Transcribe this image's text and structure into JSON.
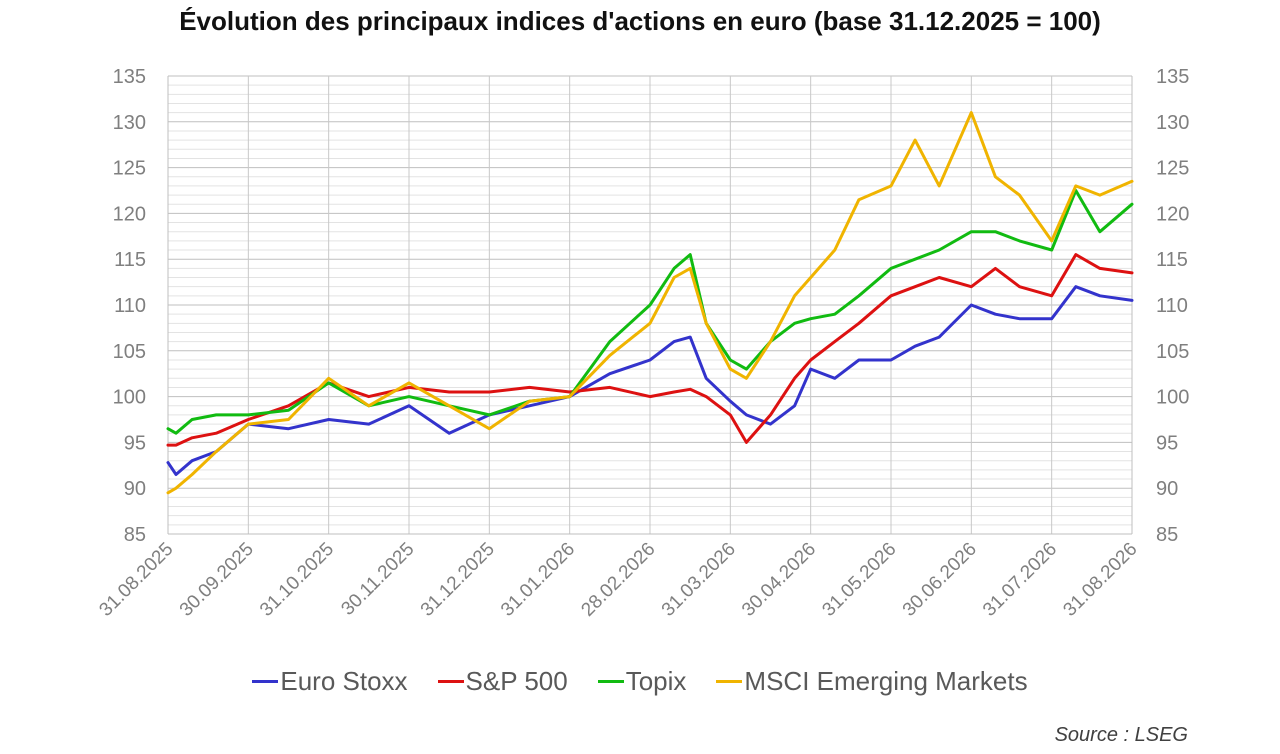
{
  "chart_data": {
    "type": "line",
    "title": "Évolution des principaux indices d'actions en euro (base 31.12.2025 = 100)",
    "source": "Source : LSEG",
    "x_tick_labels": [
      "31.08.2025",
      "30.09.2025",
      "31.10.2025",
      "30.11.2025",
      "31.12.2025",
      "31.01.2026",
      "28.02.2026",
      "31.03.2026",
      "30.04.2026",
      "31.05.2026",
      "30.06.2026",
      "31.07.2026",
      "31.08.2026"
    ],
    "ylim": [
      85,
      135
    ],
    "y_ticks": [
      85,
      90,
      95,
      100,
      105,
      110,
      115,
      120,
      125,
      130,
      135
    ],
    "y_tick_labels": [
      "85",
      "90",
      "95",
      "100",
      "105",
      "110",
      "115",
      "120",
      "125",
      "130",
      "135"
    ],
    "grid": true,
    "legend_position": "bottom",
    "series": [
      {
        "name": "Euro Stoxx",
        "color": "#3333cc",
        "x": [
          0,
          0.1,
          0.3,
          0.6,
          1,
          1.5,
          2,
          2.5,
          3,
          3.5,
          4,
          4.5,
          5,
          5.5,
          6,
          6.3,
          6.5,
          6.7,
          7,
          7.2,
          7.5,
          7.8,
          8,
          8.3,
          8.6,
          9,
          9.3,
          9.6,
          10,
          10.3,
          10.6,
          11,
          11.3,
          11.6,
          12
        ],
        "values": [
          92.8,
          91.5,
          93,
          94,
          97,
          96.5,
          97.5,
          97,
          99,
          96,
          98,
          99,
          100,
          102.5,
          104,
          106,
          106.5,
          102,
          99.5,
          98,
          97,
          99,
          103,
          102,
          104,
          104,
          105.5,
          106.5,
          110,
          109,
          108.5,
          108.5,
          112,
          111,
          110.5
        ]
      },
      {
        "name": "S&P 500",
        "color": "#dd1111",
        "x": [
          0,
          0.1,
          0.3,
          0.6,
          1,
          1.5,
          2,
          2.5,
          3,
          3.5,
          4,
          4.5,
          5,
          5.5,
          6,
          6.3,
          6.5,
          6.7,
          7,
          7.2,
          7.5,
          7.8,
          8,
          8.3,
          8.6,
          9,
          9.3,
          9.6,
          10,
          10.3,
          10.6,
          11,
          11.3,
          11.6,
          12
        ],
        "values": [
          94.7,
          94.7,
          95.5,
          96,
          97.5,
          99,
          101.5,
          100,
          101,
          100.5,
          100.5,
          101,
          100.5,
          101,
          100,
          100.5,
          100.8,
          100,
          98,
          95,
          98,
          102,
          104,
          106,
          108,
          111,
          112,
          113,
          112,
          114,
          112,
          111,
          115.5,
          114,
          113.5
        ]
      },
      {
        "name": "Topix",
        "color": "#11bb11",
        "x": [
          0,
          0.1,
          0.3,
          0.6,
          1,
          1.5,
          2,
          2.5,
          3,
          3.5,
          4,
          4.5,
          5,
          5.5,
          6,
          6.3,
          6.5,
          6.7,
          7,
          7.2,
          7.5,
          7.8,
          8,
          8.3,
          8.6,
          9,
          9.3,
          9.6,
          10,
          10.3,
          10.6,
          11,
          11.3,
          11.6,
          12
        ],
        "values": [
          96.5,
          96,
          97.5,
          98,
          98,
          98.5,
          101.5,
          99,
          100,
          99,
          98,
          99.5,
          100,
          106,
          110,
          114,
          115.5,
          108,
          104,
          103,
          106,
          108,
          108.5,
          109,
          111,
          114,
          115,
          116,
          118,
          118,
          117,
          116,
          122.5,
          118,
          121
        ]
      },
      {
        "name": "MSCI Emerging Markets",
        "color": "#f0b400",
        "x": [
          0,
          0.1,
          0.3,
          0.6,
          1,
          1.5,
          2,
          2.5,
          3,
          3.5,
          4,
          4.5,
          5,
          5.5,
          6,
          6.3,
          6.5,
          6.7,
          7,
          7.2,
          7.5,
          7.8,
          8,
          8.3,
          8.6,
          9,
          9.3,
          9.6,
          10,
          10.3,
          10.6,
          11,
          11.3,
          11.6,
          12
        ],
        "values": [
          89.5,
          90,
          91.5,
          94,
          97,
          97.5,
          102,
          99,
          101.5,
          99,
          96.5,
          99.5,
          100,
          104.5,
          108,
          113,
          114,
          108,
          103,
          102,
          106,
          111,
          113,
          116,
          121.5,
          123,
          128,
          123,
          131,
          124,
          122,
          117,
          123,
          122,
          123.5
        ]
      }
    ]
  }
}
